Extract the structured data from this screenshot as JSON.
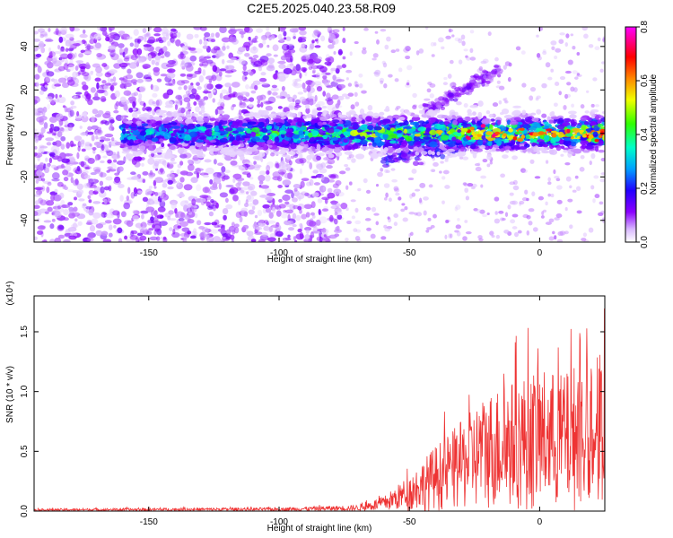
{
  "title": "C2E5.2025.040.23.58.R09",
  "colors": {
    "snr_line": "#ee3333",
    "axis": "#000000"
  },
  "chart_data": [
    {
      "type": "heatmap",
      "xlabel": "Height of straight line (km)",
      "ylabel": "Frequency (Hz)",
      "xlim": [
        -194,
        25
      ],
      "ylim": [
        -50,
        49
      ],
      "x_ticks": [
        -150,
        -100,
        -50,
        0
      ],
      "y_ticks": [
        -40,
        -20,
        0,
        20,
        40
      ],
      "colorbar": {
        "label": "Normalized spectral amplitude",
        "range": [
          0,
          0.8
        ],
        "ticks": [
          "0.0",
          "0.2",
          "0.4",
          "0.6",
          "0.8"
        ],
        "colormap": "rainbow (white-violet-blue-cyan-green-yellow-red-magenta)"
      },
      "features": [
        {
          "kind": "ridge",
          "x": [
            -160,
            25
          ],
          "y": [
            0,
            0
          ],
          "value": [
            0.3,
            0.6
          ]
        },
        {
          "kind": "streak",
          "x": [
            -45,
            -15
          ],
          "y": [
            10,
            30
          ],
          "value": 0.1
        },
        {
          "kind": "streak",
          "x": [
            -60,
            -25
          ],
          "y": [
            -12,
            -5
          ],
          "value": 0.15
        },
        {
          "kind": "scatter_noise",
          "x": [
            -194,
            -75
          ],
          "y": [
            -50,
            49
          ],
          "value": 0.05
        }
      ]
    },
    {
      "type": "line",
      "xlabel": "Height of straight line (km)",
      "ylabel": "SNR (10 * v/v)",
      "multiplier": "(x10⁴)",
      "xlim": [
        -194,
        25
      ],
      "ylim": [
        0,
        1.8
      ],
      "x_ticks": [
        -150,
        -100,
        -50,
        0
      ],
      "y_ticks": [
        "0.0",
        "0.5",
        "1.0",
        "1.5"
      ],
      "series": [
        {
          "envelope_x": [
            -194,
            -100,
            -70,
            -60,
            -50,
            -40,
            -30,
            -20,
            -10,
            0,
            10,
            20,
            25
          ],
          "envelope_y": [
            0.02,
            0.03,
            0.05,
            0.12,
            0.3,
            0.55,
            0.75,
            1.0,
            1.1,
            1.2,
            1.15,
            1.4,
            1.3
          ]
        }
      ]
    }
  ]
}
